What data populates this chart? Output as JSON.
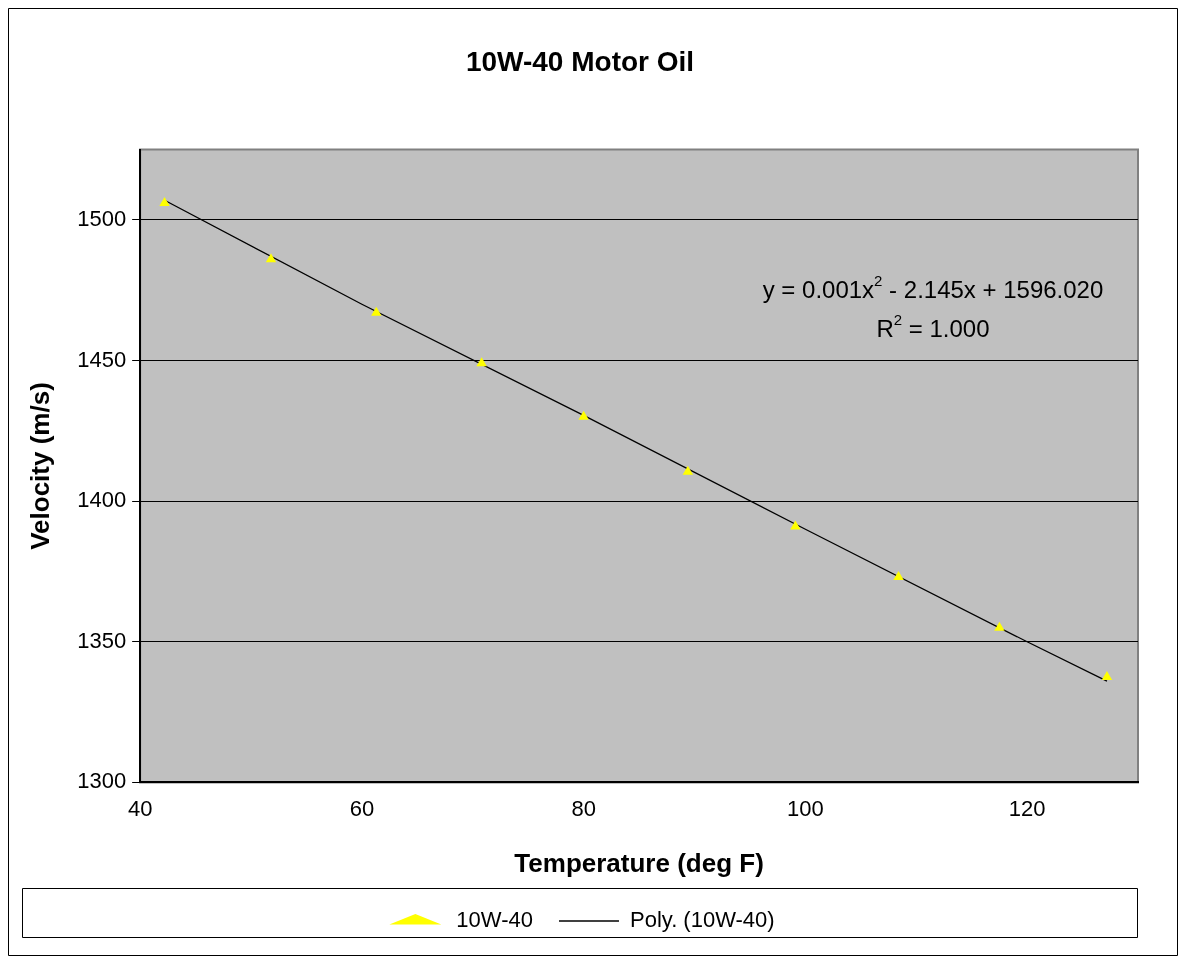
{
  "chart_data": {
    "type": "scatter",
    "title": "10W-40 Motor Oil",
    "xlabel": "Temperature (deg F)",
    "ylabel": "Velocity (m/s)",
    "x": [
      42.2,
      51.8,
      61.3,
      70.8,
      80.0,
      89.4,
      99.1,
      108.4,
      117.5,
      127.2
    ],
    "series": [
      {
        "name": "10W-40",
        "type": "scatter",
        "color": "#ffff00",
        "marker": "triangle",
        "values": [
          1506,
          1486,
          1467,
          1449,
          1430,
          1410.5,
          1391,
          1373,
          1355,
          1337.5
        ]
      },
      {
        "name": "Poly. (10W-40)",
        "type": "line",
        "color": "#000000",
        "marker": "none",
        "line_style": "solid",
        "x": [
          42.2,
          60,
          80,
          100,
          120,
          127.2
        ],
        "values": [
          1507,
          1470,
          1430.5,
          1390,
          1350,
          1336
        ]
      }
    ],
    "xlim": [
      40,
      130
    ],
    "xticks": [
      40,
      60,
      80,
      100,
      120
    ],
    "ylim": [
      1300,
      1525
    ],
    "yticks": [
      1300,
      1350,
      1400,
      1450,
      1500
    ],
    "grid": "y",
    "legend": "bottom",
    "annotations": [
      "y = 0.001x$^{2}$ - 2.145x + 1596.020",
      "R$^{2}$ = 1.000"
    ]
  }
}
